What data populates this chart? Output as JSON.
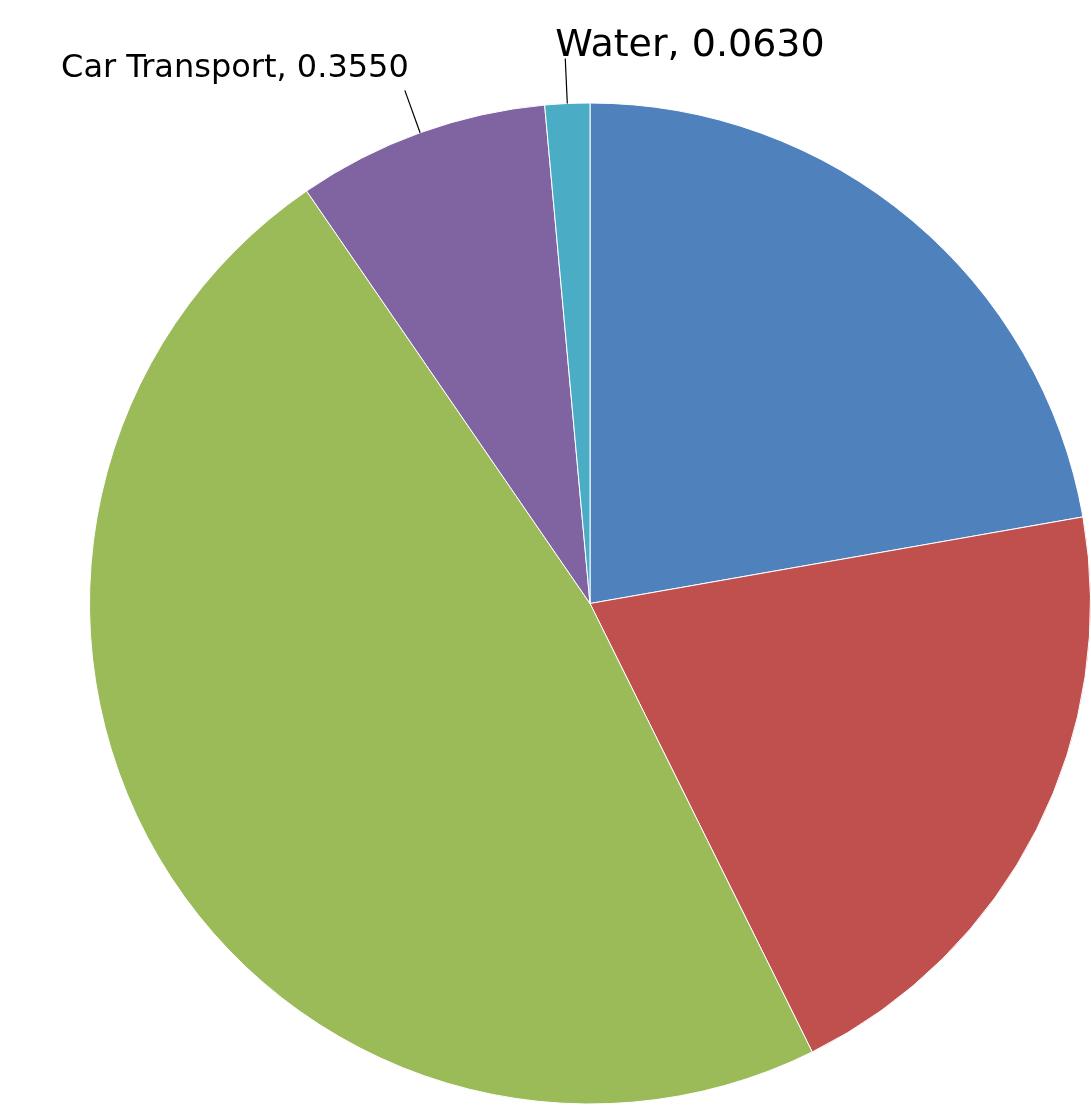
{
  "chart_data": {
    "type": "pie",
    "categories": [
      null,
      null,
      null,
      "Car Transport",
      "Water"
    ],
    "values": [
      0.97,
      0.892,
      2.083,
      0.355,
      0.063
    ],
    "value_labels": [
      null,
      null,
      null,
      "0.3550",
      "0.0630"
    ],
    "colors": [
      "#4f81bd",
      "#c0504d",
      "#9bbb59",
      "#8064a2",
      "#4bacc6"
    ],
    "legend": false
  }
}
